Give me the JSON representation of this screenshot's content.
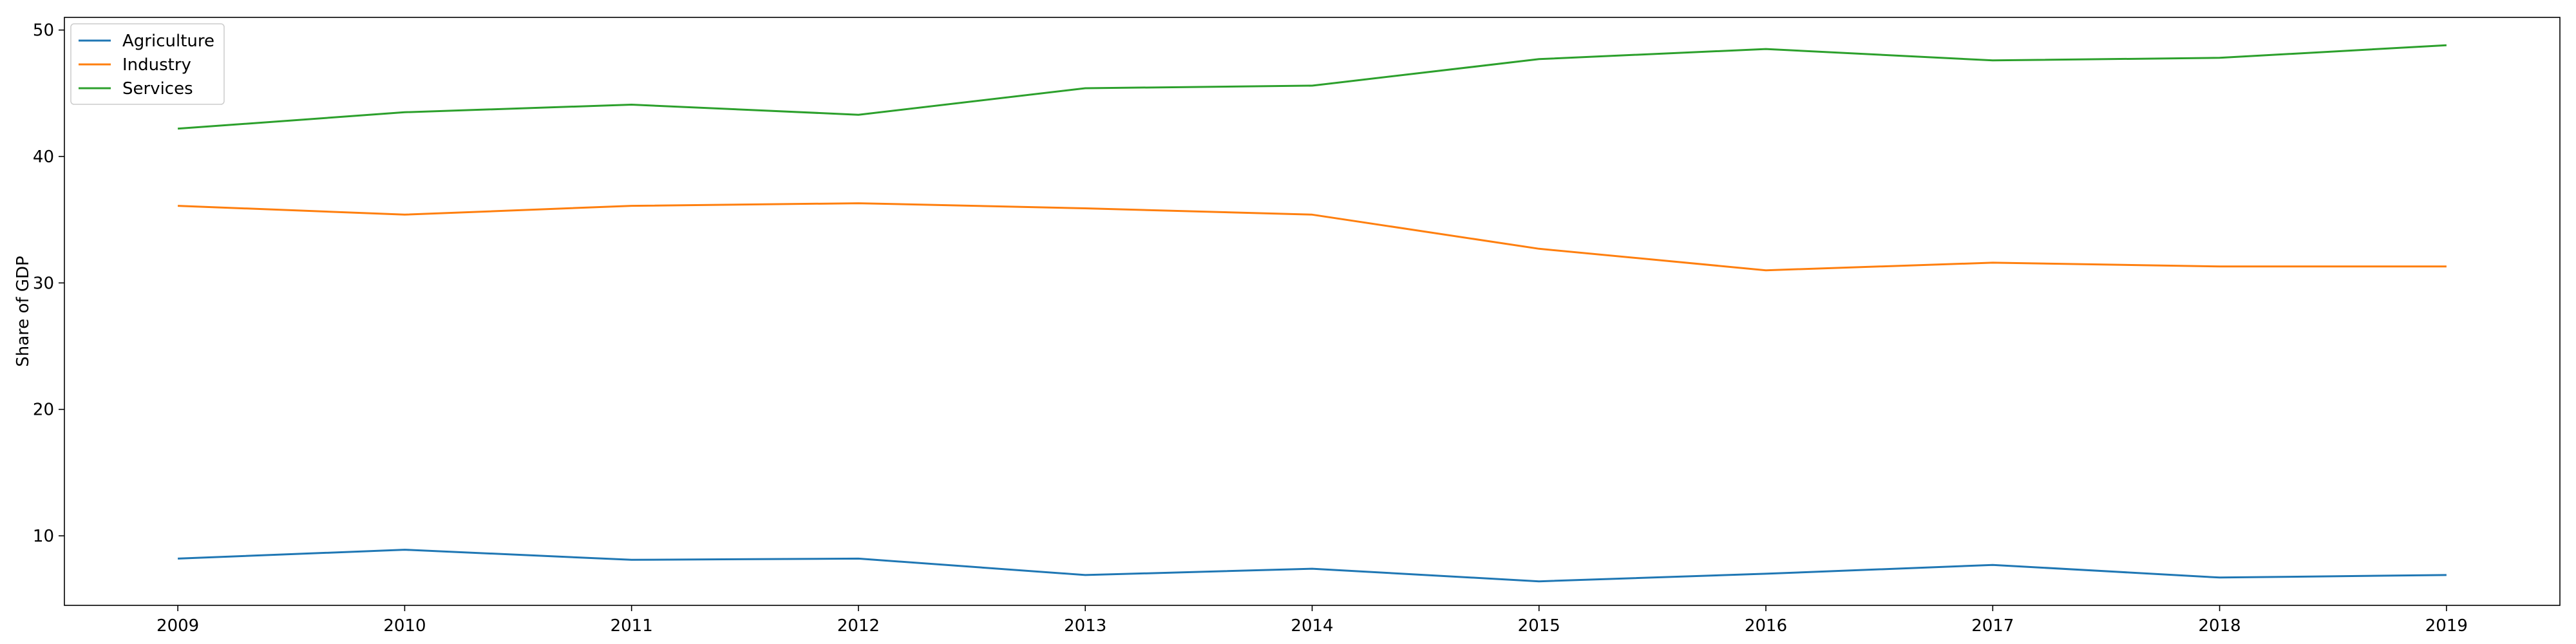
{
  "chart_data": {
    "type": "line",
    "title": "",
    "xlabel": "",
    "ylabel": "Share of GDP",
    "x": [
      2009,
      2010,
      2011,
      2012,
      2013,
      2014,
      2015,
      2016,
      2017,
      2018,
      2019
    ],
    "xlim": [
      2009,
      2019
    ],
    "ylim": [
      4.5,
      51
    ],
    "yticks": [
      10,
      20,
      30,
      40,
      50
    ],
    "grid": false,
    "legend_position": "top-left",
    "series": [
      {
        "name": "Agriculture",
        "color": "#1f77b4",
        "values": [
          8.2,
          8.9,
          8.1,
          8.2,
          6.9,
          7.4,
          6.4,
          7.0,
          7.7,
          6.7,
          6.9
        ]
      },
      {
        "name": "Industry",
        "color": "#ff7f0e",
        "values": [
          36.1,
          35.4,
          36.1,
          36.3,
          35.9,
          35.4,
          32.7,
          31.0,
          31.6,
          31.3,
          31.3
        ]
      },
      {
        "name": "Services",
        "color": "#2ca02c",
        "values": [
          42.2,
          43.5,
          44.1,
          43.3,
          45.4,
          45.6,
          47.7,
          48.5,
          47.6,
          47.8,
          48.8
        ]
      }
    ]
  }
}
